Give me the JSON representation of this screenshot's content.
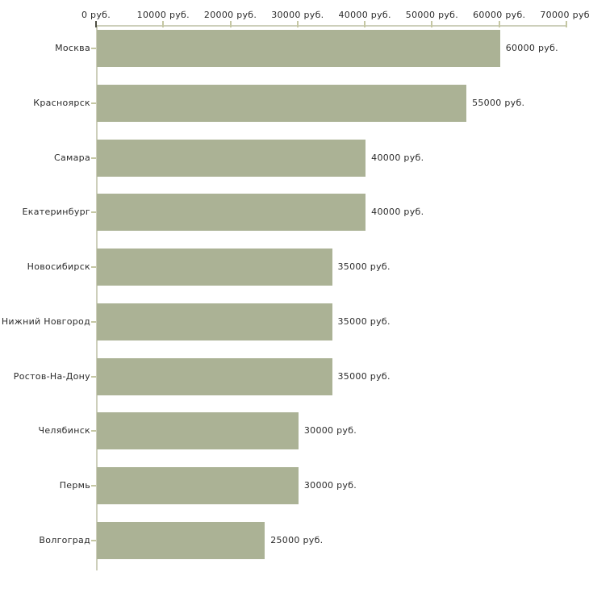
{
  "chart_data": {
    "type": "bar",
    "orientation": "horizontal",
    "title": "",
    "xlabel": "",
    "ylabel": "",
    "xlim": [
      0,
      70000
    ],
    "grid": false,
    "legend": false,
    "categories": [
      "Москва",
      "Красноярск",
      "Самара",
      "Екатеринбург",
      "Новосибирск",
      "Нижний Новгород",
      "Ростов-На-Дону",
      "Челябинск",
      "Пермь",
      "Волгоград"
    ],
    "values": [
      60000,
      55000,
      40000,
      40000,
      35000,
      35000,
      35000,
      30000,
      30000,
      25000
    ],
    "value_labels": [
      "60000 руб.",
      "55000 руб.",
      "40000 руб.",
      "40000 руб.",
      "35000 руб.",
      "35000 руб.",
      "35000 руб.",
      "30000 руб.",
      "30000 руб.",
      "25000 руб."
    ],
    "x_ticks": [
      0,
      10000,
      20000,
      30000,
      40000,
      50000,
      60000,
      70000
    ],
    "x_tick_labels": [
      "0 руб.",
      "10000 руб.",
      "20000 руб.",
      "30000 руб.",
      "40000 руб.",
      "50000 руб.",
      "60000 руб.",
      "70000 руб."
    ],
    "colors": {
      "bar": "#abb295",
      "axis_line": "#cdcfbb",
      "tick": "#c5c7a3",
      "origin_tick": "#4d4d42",
      "text": "#2b2b2b",
      "background": "#ffffff"
    }
  }
}
